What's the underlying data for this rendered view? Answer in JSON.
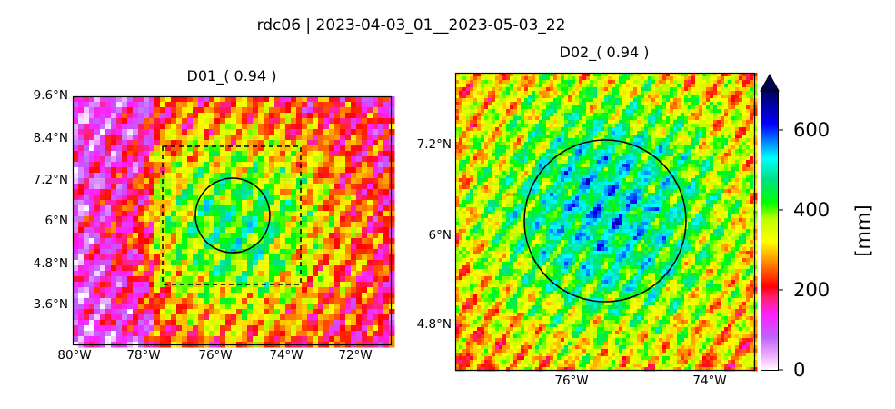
{
  "figure": {
    "title": "rdc06 | 2023-04-03_01__2023-05-03_22"
  },
  "panels": [
    {
      "id": "d01",
      "title": "D01_( 0.94 )",
      "lon_range": [
        -80,
        -71
      ],
      "lat_range": [
        2.6,
        9.6
      ],
      "x_ticks": [
        "80°W",
        "78°W",
        "76°W",
        "74°W",
        "72°W"
      ],
      "y_ticks": [
        "9.6°N",
        "8.4°N",
        "7.2°N",
        "6°N",
        "4.8°N",
        "3.6°N"
      ],
      "inner_domain_box": {
        "lon": [
          -77.5,
          -73.7
        ],
        "lat": [
          4.2,
          8.2
        ]
      },
      "circle": {
        "lon": -75.3,
        "lat": 6.2,
        "radius_deg": 1.05
      }
    },
    {
      "id": "d02",
      "title": "D02_( 0.94 )",
      "x_ticks": [
        "76°W",
        "74°W"
      ],
      "y_ticks": [
        "7.2°N",
        "6°N",
        "4.8°N"
      ]
    }
  ],
  "colorbar": {
    "label": "[mm]",
    "ticks": [
      "0",
      "200",
      "400",
      "600"
    ],
    "range": [
      0,
      700
    ],
    "extend": "max",
    "colormap": "gist_ncar"
  }
}
